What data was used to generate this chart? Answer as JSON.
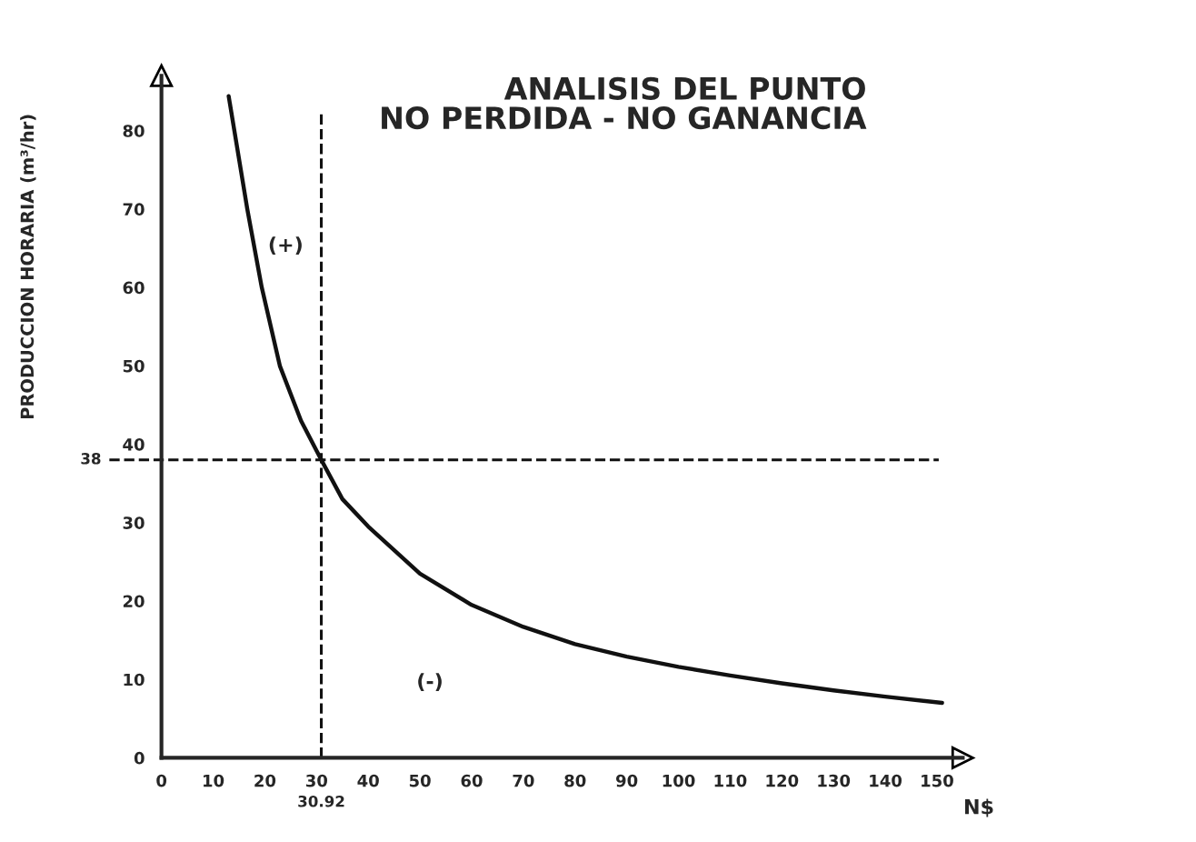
{
  "chart_data": {
    "type": "line",
    "title": "ANALISIS DEL PUNTO\nNO PERDIDA - NO GANANCIA",
    "xlabel": "N$",
    "ylabel": "PRODUCCION HORARIA (m³/hr)",
    "x": [
      13.0,
      14.1,
      16.6,
      19.4,
      22.9,
      27,
      30.92,
      35,
      40,
      50,
      60,
      70,
      80,
      90,
      100,
      110,
      120,
      130,
      140,
      151
    ],
    "series": [
      {
        "color": "#111111",
        "values": [
          84.4,
          80,
          70,
          60,
          50,
          43,
          38,
          33,
          29.5,
          23.5,
          19.5,
          16.7,
          14.5,
          12.9,
          11.6,
          10.5,
          9.5,
          8.6,
          7.8,
          7.0
        ]
      }
    ],
    "xlim": [
      0,
      155
    ],
    "ylim": [
      0,
      87
    ],
    "xticks": [
      0,
      10,
      20,
      30,
      40,
      50,
      60,
      70,
      80,
      90,
      100,
      110,
      120,
      130,
      140,
      150
    ],
    "yticks": [
      0,
      10,
      20,
      30,
      40,
      50,
      60,
      70,
      80
    ],
    "ref_lines": [
      {
        "axis": "y",
        "value": 38,
        "label": "38",
        "line_style": "dashed",
        "color": "#111111"
      },
      {
        "axis": "x",
        "value": 30.92,
        "label": "30.92",
        "line_style": "dashed",
        "color": "#111111"
      }
    ],
    "annotations": [
      "(+)",
      "(-)"
    ],
    "grid": false,
    "legend": false,
    "marker": "none",
    "line_style": "solid"
  }
}
